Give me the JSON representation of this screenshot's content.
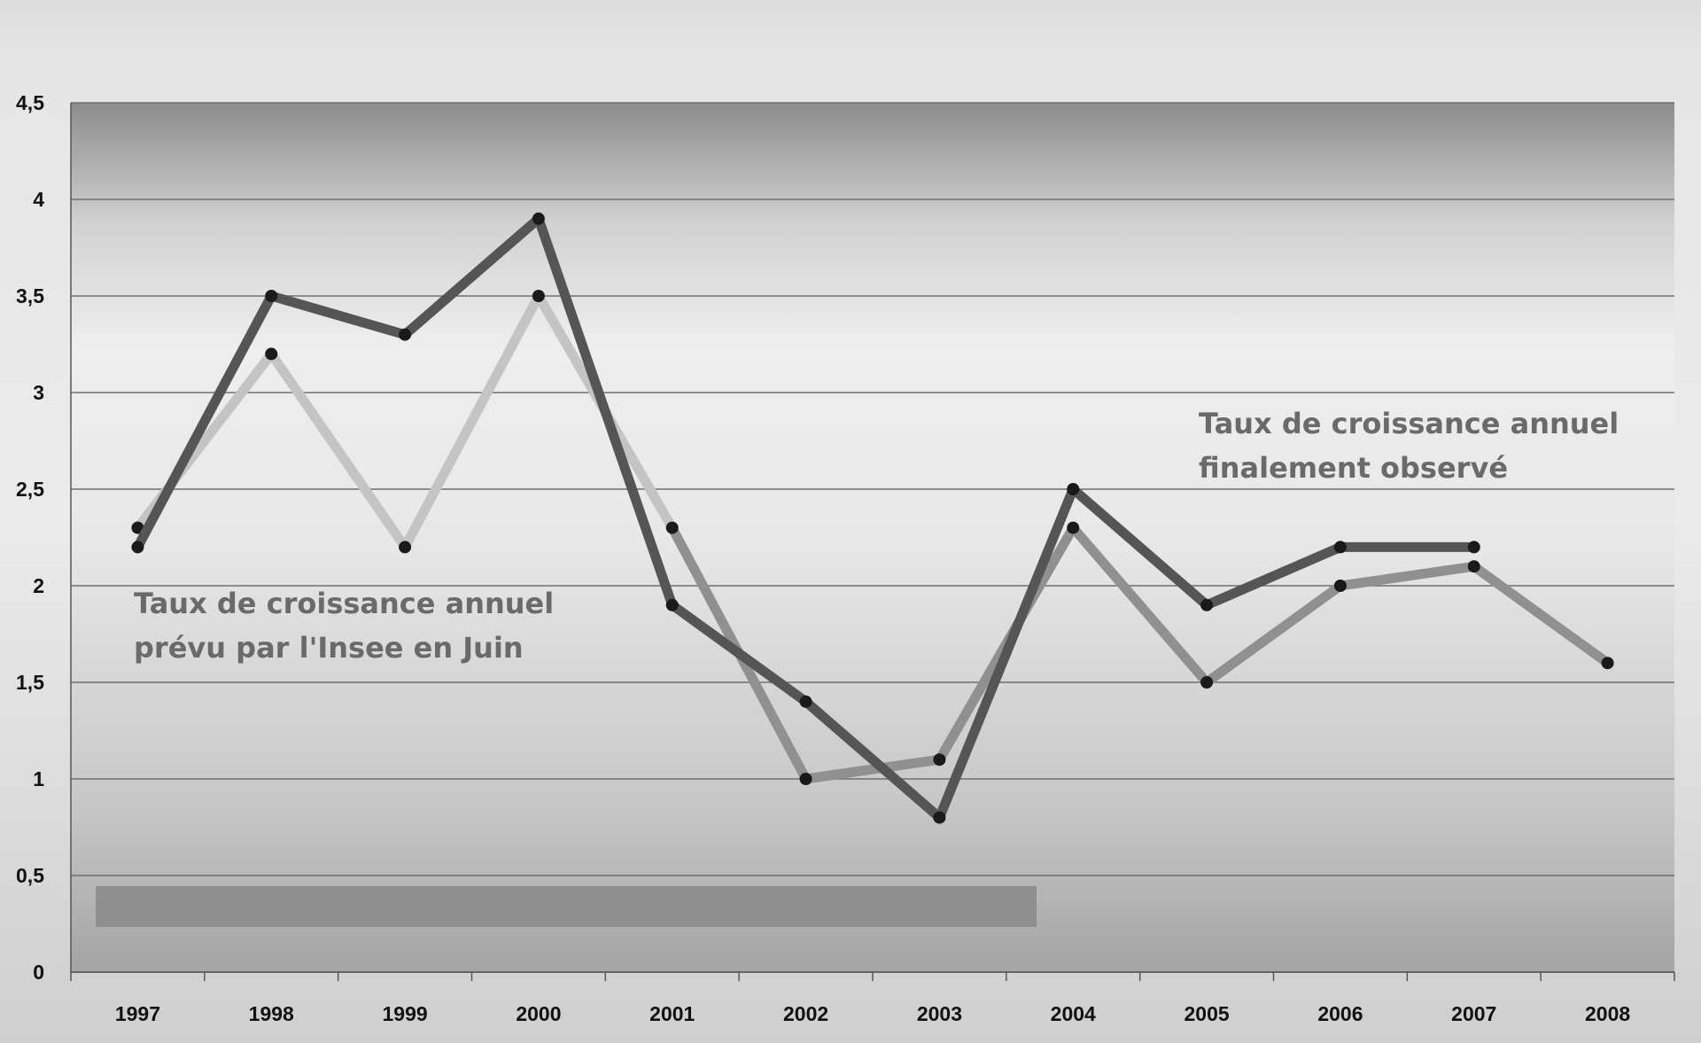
{
  "chart_data": {
    "type": "line",
    "categories": [
      "1997",
      "1998",
      "1999",
      "2000",
      "2001",
      "2002",
      "2003",
      "2004",
      "2005",
      "2006",
      "2007",
      "2008"
    ],
    "ylim": [
      0,
      4.5
    ],
    "y_ticks": [
      "0",
      "0,5",
      "1",
      "1,5",
      "2",
      "2,5",
      "3",
      "3,5",
      "4",
      "4,5"
    ],
    "grid": true,
    "series": [
      {
        "name": "Taux de croissance annuel finalement observé",
        "name_lines": [
          "Taux de croissance  annuel",
          "finalement observé"
        ],
        "color": "#555555",
        "values": [
          2.2,
          3.5,
          3.3,
          3.9,
          1.9,
          1.4,
          0.8,
          2.5,
          1.9,
          2.2,
          2.2,
          null
        ]
      },
      {
        "name": "Taux de croissance annuel prévu par l'Insee en Juin",
        "name_lines": [
          "Taux de croissance  annuel",
          "prévu par l'Insee en Juin"
        ],
        "color_segments": [
          "#c4c4c4",
          "#c4c4c4",
          "#c4c4c4",
          "#c4c4c4",
          "#909090",
          "#909090",
          "#909090",
          "#909090",
          "#909090",
          "#909090",
          "#909090"
        ],
        "values": [
          2.3,
          3.2,
          2.2,
          3.5,
          2.3,
          1.0,
          1.1,
          2.3,
          1.5,
          2.0,
          2.1,
          1.6
        ]
      }
    ],
    "colors": {
      "plot_top": "#8c8c8c",
      "plot_mid": "#eeeeee",
      "plot_bottom": "#a4a4a4",
      "grid": "#6e6e6e",
      "marker": "#1a1a1a",
      "band": "#8f8f8f"
    }
  }
}
